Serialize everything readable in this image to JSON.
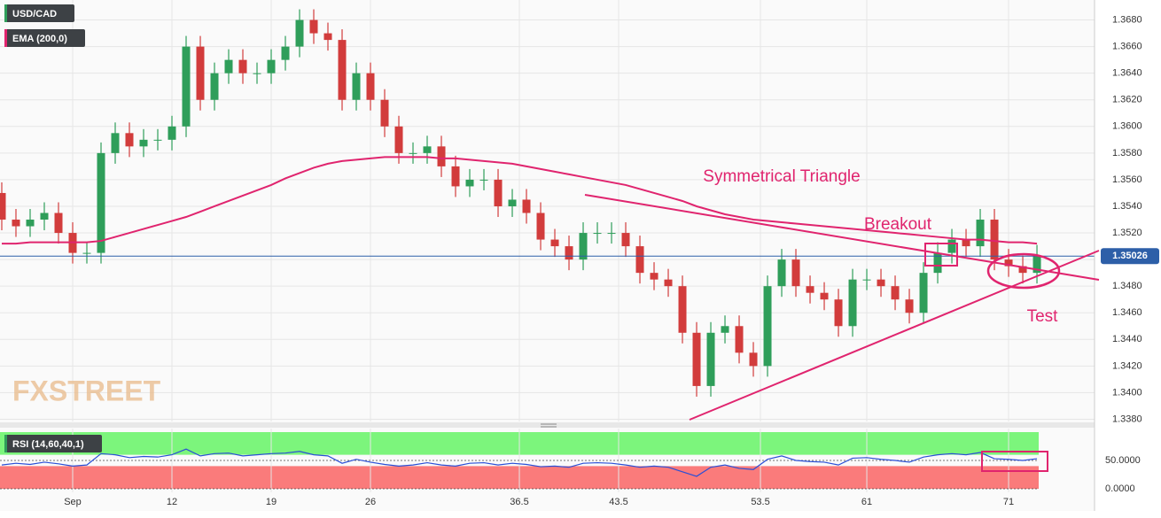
{
  "chart_data": [
    {
      "type": "candlestick",
      "title": "USD/CAD",
      "x": [
        0,
        1,
        2,
        3,
        4,
        5,
        6,
        7,
        8,
        9,
        10,
        11,
        12,
        13,
        14,
        15,
        16,
        17,
        18,
        19,
        20,
        21,
        22,
        23,
        24,
        25,
        26,
        27,
        28,
        29,
        30,
        31,
        32,
        33,
        34,
        35,
        36,
        37,
        38,
        39,
        40,
        41,
        42,
        43,
        44,
        45,
        46,
        47,
        48,
        49,
        50,
        51,
        52,
        53,
        54,
        55,
        56,
        57,
        58,
        59,
        60,
        61,
        62,
        63,
        64,
        65,
        66,
        67,
        68,
        69,
        70,
        71,
        72,
        73
      ],
      "open": [
        1.355,
        1.353,
        1.3525,
        1.353,
        1.3535,
        1.352,
        1.3505,
        1.3505,
        1.358,
        1.3595,
        1.3585,
        1.359,
        1.359,
        1.36,
        1.366,
        1.362,
        1.364,
        1.365,
        1.364,
        1.364,
        1.365,
        1.366,
        1.368,
        1.367,
        1.3665,
        1.362,
        1.364,
        1.362,
        1.36,
        1.358,
        1.358,
        1.3585,
        1.357,
        1.3555,
        1.356,
        1.356,
        1.354,
        1.3545,
        1.3535,
        1.3515,
        1.351,
        1.35,
        1.352,
        1.352,
        1.352,
        1.351,
        1.349,
        1.3485,
        1.348,
        1.3445,
        1.3405,
        1.3445,
        1.345,
        1.343,
        1.342,
        1.348,
        1.35,
        1.348,
        1.3475,
        1.347,
        1.345,
        1.3485,
        1.3485,
        1.348,
        1.347,
        1.346,
        1.349,
        1.3505,
        1.3515,
        1.351,
        1.353,
        1.35,
        1.3495,
        1.349
      ],
      "high": [
        1.3558,
        1.3538,
        1.3538,
        1.3543,
        1.3543,
        1.3528,
        1.3513,
        1.3588,
        1.3603,
        1.3603,
        1.3598,
        1.3598,
        1.3608,
        1.3668,
        1.3668,
        1.3648,
        1.3658,
        1.3658,
        1.3648,
        1.3658,
        1.3668,
        1.3688,
        1.3688,
        1.3678,
        1.3673,
        1.3648,
        1.3648,
        1.3628,
        1.3608,
        1.3588,
        1.3593,
        1.3593,
        1.3578,
        1.3568,
        1.3568,
        1.3568,
        1.3553,
        1.3553,
        1.3543,
        1.3523,
        1.3518,
        1.3528,
        1.3528,
        1.3528,
        1.3528,
        1.3518,
        1.3498,
        1.3493,
        1.3488,
        1.3453,
        1.3453,
        1.3458,
        1.3458,
        1.3438,
        1.3488,
        1.3508,
        1.3508,
        1.3488,
        1.3483,
        1.3478,
        1.3493,
        1.3493,
        1.3493,
        1.3488,
        1.3478,
        1.3498,
        1.3513,
        1.3523,
        1.3523,
        1.3538,
        1.3538,
        1.3508,
        1.3503,
        1.3511
      ],
      "low": [
        1.3522,
        1.3517,
        1.3517,
        1.3522,
        1.3512,
        1.3497,
        1.3497,
        1.3497,
        1.3572,
        1.3577,
        1.3577,
        1.3582,
        1.3582,
        1.3592,
        1.3612,
        1.3612,
        1.3632,
        1.3632,
        1.3632,
        1.3632,
        1.3642,
        1.3652,
        1.3662,
        1.3657,
        1.3612,
        1.3612,
        1.3612,
        1.3592,
        1.3572,
        1.3572,
        1.3572,
        1.3562,
        1.3547,
        1.3547,
        1.3552,
        1.3532,
        1.3532,
        1.3527,
        1.3507,
        1.3502,
        1.3492,
        1.3492,
        1.3512,
        1.3512,
        1.3502,
        1.3482,
        1.3477,
        1.3472,
        1.3437,
        1.3397,
        1.3397,
        1.3437,
        1.3422,
        1.3412,
        1.3412,
        1.3472,
        1.3472,
        1.3467,
        1.3462,
        1.3442,
        1.3442,
        1.3477,
        1.3472,
        1.3462,
        1.3452,
        1.3452,
        1.3482,
        1.3497,
        1.3502,
        1.3502,
        1.3492,
        1.3487,
        1.3482,
        1.3482
      ],
      "close": [
        1.353,
        1.3525,
        1.353,
        1.3535,
        1.352,
        1.3505,
        1.3505,
        1.358,
        1.3595,
        1.3585,
        1.359,
        1.359,
        1.36,
        1.366,
        1.362,
        1.364,
        1.365,
        1.364,
        1.364,
        1.365,
        1.366,
        1.368,
        1.367,
        1.3665,
        1.362,
        1.364,
        1.362,
        1.36,
        1.358,
        1.358,
        1.3585,
        1.357,
        1.3555,
        1.356,
        1.356,
        1.354,
        1.3545,
        1.3535,
        1.3515,
        1.351,
        1.35,
        1.352,
        1.352,
        1.352,
        1.351,
        1.349,
        1.3485,
        1.348,
        1.3445,
        1.3405,
        1.3445,
        1.345,
        1.343,
        1.342,
        1.348,
        1.35,
        1.348,
        1.3475,
        1.347,
        1.345,
        1.3485,
        1.3485,
        1.348,
        1.347,
        1.346,
        1.349,
        1.3505,
        1.3515,
        1.351,
        1.353,
        1.35,
        1.3495,
        1.349,
        1.3503
      ],
      "up_color": "#2f9e5a",
      "down_color": "#d23c3c",
      "overlays": [
        {
          "name": "EMA (200,0)",
          "color": "#e0246e",
          "values": [
            1.3512,
            1.3512,
            1.3513,
            1.3513,
            1.3513,
            1.3513,
            1.3513,
            1.3514,
            1.3517,
            1.352,
            1.3523,
            1.3526,
            1.3529,
            1.3532,
            1.3536,
            1.354,
            1.3544,
            1.3548,
            1.3552,
            1.3556,
            1.3561,
            1.3565,
            1.3569,
            1.3572,
            1.3574,
            1.3575,
            1.3576,
            1.3577,
            1.3577,
            1.3577,
            1.3577,
            1.3576,
            1.3576,
            1.3575,
            1.3574,
            1.3573,
            1.3572,
            1.357,
            1.3568,
            1.3566,
            1.3564,
            1.3562,
            1.356,
            1.3558,
            1.3556,
            1.3553,
            1.355,
            1.3547,
            1.3544,
            1.354,
            1.3537,
            1.3534,
            1.3532,
            1.353,
            1.3529,
            1.3528,
            1.3527,
            1.3526,
            1.3525,
            1.3524,
            1.3523,
            1.3522,
            1.3521,
            1.352,
            1.3519,
            1.3518,
            1.3517,
            1.3516,
            1.3515,
            1.3515,
            1.3514,
            1.3513,
            1.3513,
            1.3512
          ]
        }
      ],
      "last_price": 1.35026,
      "last_price_color": "#2d5fa8",
      "annotations": [
        "Symmetrical Triangle",
        "Breakout",
        "Test"
      ],
      "watermark": "FXSTREET",
      "xlim": [
        -0.125,
        77.06
      ],
      "xticks": [
        {
          "value": 5,
          "label": "Sep"
        },
        12,
        19,
        26,
        36.5,
        43.5,
        53.5,
        61,
        71
      ],
      "ylim": [
        1.3379,
        1.3695
      ],
      "yticks": [
        {
          "value": 1.338,
          "label": "1.3380"
        },
        {
          "value": 1.34,
          "label": "1.3400"
        },
        {
          "value": 1.342,
          "label": "1.3420"
        },
        {
          "value": 1.344,
          "label": "1.3440"
        },
        {
          "value": 1.346,
          "label": "1.3460"
        },
        {
          "value": 1.348,
          "label": "1.3480"
        },
        {
          "value": 1.35,
          "label": "1.3500"
        },
        {
          "value": 1.352,
          "label": "1.3520"
        },
        {
          "value": 1.354,
          "label": "1.3540"
        },
        {
          "value": 1.356,
          "label": "1.3560"
        },
        {
          "value": 1.358,
          "label": "1.3580"
        },
        {
          "value": 1.36,
          "label": "1.3600"
        },
        {
          "value": 1.362,
          "label": "1.3620"
        },
        {
          "value": 1.364,
          "label": "1.3640"
        },
        {
          "value": 1.366,
          "label": "1.3660"
        },
        {
          "value": 1.368,
          "label": "1.3680"
        }
      ],
      "grid": true
    },
    {
      "type": "line",
      "title": "RSI (14,60,40,1)",
      "color": "#2a4fd6",
      "values": [
        42,
        45,
        43,
        47,
        44,
        40,
        42,
        62,
        60,
        55,
        57,
        56,
        60,
        70,
        58,
        62,
        63,
        58,
        60,
        62,
        63,
        66,
        60,
        58,
        45,
        52,
        47,
        43,
        40,
        42,
        46,
        42,
        40,
        45,
        46,
        42,
        45,
        43,
        39,
        40,
        38,
        45,
        46,
        45,
        42,
        38,
        40,
        38,
        30,
        22,
        38,
        42,
        36,
        34,
        52,
        58,
        50,
        48,
        47,
        42,
        54,
        55,
        52,
        50,
        47,
        56,
        60,
        62,
        60,
        64,
        53,
        52,
        50,
        53
      ],
      "bands": [
        {
          "from": 60,
          "to": 100,
          "color": "#7cf57c"
        },
        {
          "from": 0,
          "to": 40,
          "color": "#fa7b7b"
        }
      ],
      "ylim": [
        0,
        100
      ],
      "yticks": [
        {
          "value": 50,
          "label": "50.0000"
        },
        {
          "value": 0,
          "label": "0.0000"
        }
      ]
    }
  ]
}
